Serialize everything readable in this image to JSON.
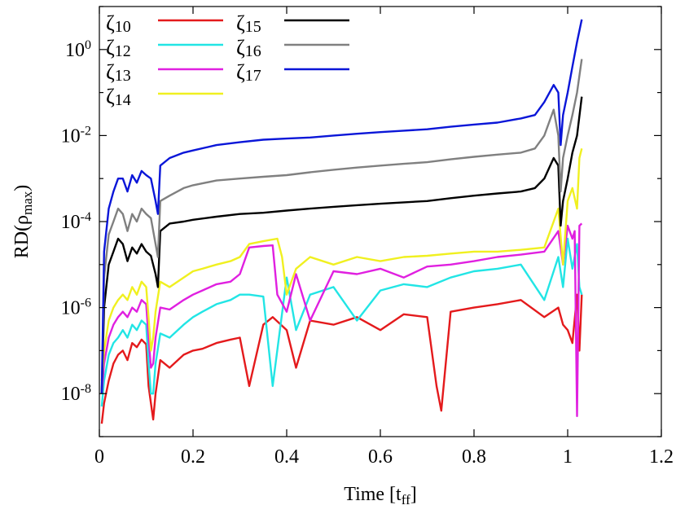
{
  "chart_data": {
    "type": "line",
    "title": "",
    "xlabel": {
      "main": "Time [t",
      "sub": "ff",
      "tail": "]"
    },
    "ylabel": {
      "main": "RD(ρ",
      "sub": "max",
      "tail": ")"
    },
    "xlim": [
      0,
      1.2
    ],
    "ylim": [
      1e-09,
      10
    ],
    "yscale": "log",
    "grid": false,
    "legend": "top-left",
    "xticks": [
      0,
      0.2,
      0.4,
      0.6,
      0.8,
      1,
      1.2
    ],
    "xtick_labels": [
      "0",
      "0.2",
      "0.4",
      "0.6",
      "0.8",
      "1",
      "1.2"
    ],
    "yticks": [
      {
        "value": 1,
        "base": "10",
        "exp": "0"
      },
      {
        "value": 0.01,
        "base": "10",
        "exp": "-2"
      },
      {
        "value": 0.0001,
        "base": "10",
        "exp": "-4"
      },
      {
        "value": 1e-06,
        "base": "10",
        "exp": "-6"
      },
      {
        "value": 1e-08,
        "base": "10",
        "exp": "-8"
      }
    ],
    "series": [
      {
        "name": "ζ10",
        "sym": "ζ",
        "sub": "10",
        "color": "#e41a1c",
        "x": [
          0.005,
          0.01,
          0.02,
          0.03,
          0.04,
          0.05,
          0.06,
          0.07,
          0.08,
          0.09,
          0.1,
          0.105,
          0.11,
          0.115,
          0.12,
          0.13,
          0.15,
          0.18,
          0.2,
          0.22,
          0.25,
          0.28,
          0.3,
          0.32,
          0.35,
          0.37,
          0.4,
          0.42,
          0.45,
          0.5,
          0.55,
          0.6,
          0.65,
          0.7,
          0.72,
          0.73,
          0.75,
          0.8,
          0.85,
          0.9,
          0.95,
          0.98,
          0.99,
          1.0,
          1.01,
          1.02,
          1.025,
          1.03
        ],
        "y": [
          2e-09,
          6e-09,
          2e-08,
          5e-08,
          8e-08,
          1e-07,
          6e-08,
          1.5e-07,
          1.2e-07,
          1.8e-07,
          1.4e-07,
          1.5e-08,
          6e-09,
          2.5e-09,
          1e-08,
          6e-08,
          4e-08,
          8e-08,
          1e-07,
          1.1e-07,
          1.5e-07,
          1.8e-07,
          2e-07,
          1.5e-08,
          4e-07,
          6e-07,
          3e-07,
          4e-08,
          5e-07,
          4e-07,
          6e-07,
          3e-07,
          7e-07,
          6e-07,
          1.5e-08,
          4e-09,
          8e-07,
          1e-06,
          1.2e-06,
          1.5e-06,
          6e-07,
          1e-06,
          4e-07,
          3e-07,
          1.5e-07,
          2e-06,
          1e-07,
          2e-06
        ]
      },
      {
        "name": "ζ12",
        "sym": "ζ",
        "sub": "12",
        "color": "#22e5e5",
        "x": [
          0.005,
          0.01,
          0.02,
          0.03,
          0.04,
          0.05,
          0.06,
          0.07,
          0.08,
          0.09,
          0.1,
          0.105,
          0.11,
          0.115,
          0.12,
          0.13,
          0.15,
          0.18,
          0.2,
          0.22,
          0.25,
          0.28,
          0.3,
          0.32,
          0.35,
          0.37,
          0.4,
          0.42,
          0.45,
          0.5,
          0.55,
          0.6,
          0.65,
          0.7,
          0.75,
          0.8,
          0.85,
          0.9,
          0.95,
          0.98,
          0.99,
          1.0,
          1.01,
          1.02,
          1.025,
          1.03
        ],
        "y": [
          5e-09,
          2e-08,
          8e-08,
          1.5e-07,
          2e-07,
          3e-07,
          2e-07,
          4e-07,
          3e-07,
          5e-07,
          4e-07,
          5e-08,
          1e-08,
          1e-08,
          5e-08,
          2.5e-07,
          2e-07,
          4e-07,
          6e-07,
          8e-07,
          1.2e-06,
          1.5e-06,
          2e-06,
          2e-06,
          1.8e-06,
          1.5e-08,
          5e-06,
          3e-07,
          2e-06,
          3e-06,
          5e-07,
          2.5e-06,
          3.5e-06,
          3e-06,
          5e-06,
          7e-06,
          8e-06,
          1e-05,
          1.5e-06,
          1.5e-05,
          3e-06,
          4e-05,
          8e-06,
          3e-05,
          3e-06,
          2e-06
        ]
      },
      {
        "name": "ζ13",
        "sym": "ζ",
        "sub": "13",
        "color": "#e020e0",
        "x": [
          0.005,
          0.01,
          0.02,
          0.03,
          0.04,
          0.05,
          0.06,
          0.07,
          0.08,
          0.09,
          0.1,
          0.105,
          0.11,
          0.115,
          0.12,
          0.13,
          0.15,
          0.18,
          0.2,
          0.22,
          0.25,
          0.28,
          0.3,
          0.32,
          0.35,
          0.37,
          0.38,
          0.4,
          0.42,
          0.45,
          0.5,
          0.55,
          0.6,
          0.65,
          0.7,
          0.75,
          0.8,
          0.85,
          0.9,
          0.95,
          0.98,
          0.99,
          1.0,
          1.01,
          1.015,
          1.02,
          1.025,
          1.03
        ],
        "y": [
          1e-08,
          5e-08,
          2e-07,
          4e-07,
          6e-07,
          8e-07,
          6e-07,
          1e-06,
          8e-07,
          1.5e-06,
          1.2e-06,
          2e-07,
          4e-08,
          5e-08,
          2e-07,
          1e-06,
          9e-07,
          1.5e-06,
          2e-06,
          2.5e-06,
          3.5e-06,
          4e-06,
          6e-06,
          2.5e-05,
          2.7e-05,
          2.8e-05,
          2e-06,
          8e-07,
          6e-06,
          5e-07,
          7e-06,
          6e-06,
          8e-06,
          5e-06,
          9e-06,
          1e-05,
          1.2e-05,
          1.5e-05,
          1.7e-05,
          2e-05,
          6e-05,
          1e-05,
          8e-05,
          4e-05,
          6e-05,
          3e-09,
          8e-05,
          9e-05
        ]
      },
      {
        "name": "ζ14",
        "sym": "ζ",
        "sub": "14",
        "color": "#f0f020",
        "x": [
          0.005,
          0.01,
          0.02,
          0.03,
          0.04,
          0.05,
          0.06,
          0.07,
          0.08,
          0.09,
          0.1,
          0.105,
          0.11,
          0.115,
          0.12,
          0.13,
          0.15,
          0.18,
          0.2,
          0.22,
          0.25,
          0.28,
          0.3,
          0.32,
          0.35,
          0.38,
          0.39,
          0.4,
          0.42,
          0.45,
          0.5,
          0.55,
          0.6,
          0.65,
          0.7,
          0.75,
          0.8,
          0.85,
          0.9,
          0.95,
          0.98,
          0.99,
          1.0,
          1.01,
          1.02,
          1.025,
          1.03
        ],
        "y": [
          2e-08,
          1e-07,
          5e-07,
          1e-06,
          1.5e-06,
          2e-06,
          1.5e-06,
          3e-06,
          2e-06,
          4e-06,
          3e-06,
          6e-07,
          1e-07,
          2e-07,
          8e-07,
          4e-06,
          3e-06,
          5e-06,
          7e-06,
          8e-06,
          1e-05,
          1.2e-05,
          1.5e-05,
          3e-05,
          3.5e-05,
          4e-05,
          1.5e-05,
          2e-06,
          8e-06,
          1.5e-05,
          1e-05,
          1.5e-05,
          1.2e-05,
          1.5e-05,
          1.6e-05,
          1.8e-05,
          2e-05,
          2e-05,
          2.2e-05,
          2.5e-05,
          0.0002,
          1e-05,
          0.0003,
          0.0006,
          0.0002,
          0.003,
          0.005
        ]
      },
      {
        "name": "ζ15",
        "sym": "ζ",
        "sub": "15",
        "color": "#000000",
        "x": [
          0.005,
          0.01,
          0.02,
          0.03,
          0.04,
          0.05,
          0.06,
          0.07,
          0.08,
          0.09,
          0.1,
          0.11,
          0.12,
          0.125,
          0.13,
          0.15,
          0.18,
          0.2,
          0.25,
          0.3,
          0.35,
          0.4,
          0.45,
          0.5,
          0.55,
          0.6,
          0.65,
          0.7,
          0.75,
          0.8,
          0.85,
          0.9,
          0.93,
          0.95,
          0.97,
          0.98,
          0.985,
          0.99,
          1.0,
          1.01,
          1.02,
          1.03
        ],
        "y": [
          1e-08,
          1e-06,
          1e-05,
          2e-05,
          4e-05,
          3e-05,
          1.2e-05,
          2.5e-05,
          1.8e-05,
          3e-05,
          2e-05,
          1.6e-05,
          6e-06,
          3e-06,
          6e-05,
          9e-05,
          0.0001,
          0.00011,
          0.00013,
          0.00015,
          0.00016,
          0.00018,
          0.0002,
          0.00022,
          0.00024,
          0.00026,
          0.00028,
          0.0003,
          0.00035,
          0.0004,
          0.00045,
          0.0005,
          0.0006,
          0.001,
          0.003,
          0.002,
          8e-05,
          0.0003,
          0.001,
          0.004,
          0.01,
          0.08
        ]
      },
      {
        "name": "ζ16",
        "sym": "ζ",
        "sub": "16",
        "color": "#808080",
        "x": [
          0.005,
          0.01,
          0.02,
          0.03,
          0.04,
          0.05,
          0.06,
          0.07,
          0.08,
          0.09,
          0.1,
          0.11,
          0.12,
          0.125,
          0.13,
          0.15,
          0.18,
          0.2,
          0.25,
          0.3,
          0.35,
          0.4,
          0.45,
          0.5,
          0.55,
          0.6,
          0.65,
          0.7,
          0.75,
          0.8,
          0.85,
          0.9,
          0.93,
          0.95,
          0.97,
          0.98,
          0.985,
          0.99,
          1.0,
          1.01,
          1.02,
          1.03
        ],
        "y": [
          1e-08,
          5e-06,
          5e-05,
          0.0001,
          0.0002,
          0.00015,
          6e-05,
          0.00015,
          0.0001,
          0.0002,
          0.00015,
          0.00012,
          3e-05,
          1.5e-05,
          0.0003,
          0.0004,
          0.0006,
          0.0007,
          0.0009,
          0.001,
          0.0011,
          0.0012,
          0.0014,
          0.0016,
          0.0018,
          0.002,
          0.0022,
          0.0024,
          0.0028,
          0.0032,
          0.0036,
          0.004,
          0.005,
          0.01,
          0.04,
          0.01,
          0.0005,
          0.003,
          0.01,
          0.03,
          0.1,
          0.6
        ]
      },
      {
        "name": "ζ17",
        "sym": "ζ",
        "sub": "17",
        "color": "#0a16d8",
        "x": [
          0.005,
          0.01,
          0.02,
          0.03,
          0.04,
          0.05,
          0.06,
          0.07,
          0.08,
          0.09,
          0.1,
          0.11,
          0.12,
          0.125,
          0.13,
          0.15,
          0.18,
          0.2,
          0.25,
          0.3,
          0.35,
          0.4,
          0.45,
          0.5,
          0.55,
          0.6,
          0.65,
          0.7,
          0.75,
          0.8,
          0.85,
          0.9,
          0.93,
          0.95,
          0.97,
          0.98,
          0.985,
          0.99,
          1.0,
          1.01,
          1.02,
          1.03
        ],
        "y": [
          1e-08,
          2e-05,
          0.0002,
          0.0005,
          0.001,
          0.001,
          0.0005,
          0.0012,
          0.0008,
          0.0015,
          0.0012,
          0.001,
          0.0003,
          0.00015,
          0.002,
          0.003,
          0.004,
          0.0045,
          0.006,
          0.007,
          0.008,
          0.0085,
          0.009,
          0.01,
          0.011,
          0.012,
          0.013,
          0.014,
          0.016,
          0.018,
          0.02,
          0.025,
          0.03,
          0.06,
          0.15,
          0.1,
          0.006,
          0.03,
          0.1,
          0.4,
          1.5,
          5
        ]
      }
    ]
  }
}
